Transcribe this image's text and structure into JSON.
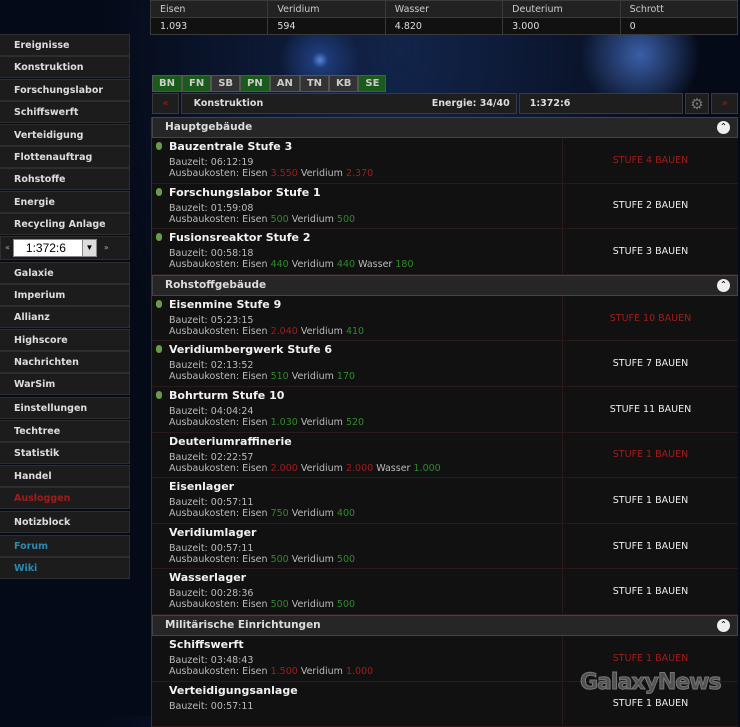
{
  "resources": {
    "headers": [
      "Eisen",
      "Veridium",
      "Wasser",
      "Deuterium",
      "Schrott"
    ],
    "values": [
      "1.093",
      "594",
      "4.820",
      "3.000",
      "0"
    ]
  },
  "sidebar": {
    "group1": [
      "Ereignisse",
      "Konstruktion",
      "Forschungslabor",
      "Schiffswerft",
      "Verteidigung",
      "Flottenauftrag",
      "Rohstoffe",
      "Energie",
      "Recycling Anlage"
    ],
    "planet_select": {
      "prev": "«",
      "value": "1:372:6",
      "next": "»"
    },
    "group2": [
      "Galaxie",
      "Imperium",
      "Allianz",
      "Highscore",
      "Nachrichten",
      "WarSim"
    ],
    "group3": [
      "Einstellungen",
      "Techtree",
      "Statistik",
      "Handel"
    ],
    "logout": "Ausloggen",
    "notes": "Notizblock",
    "forum": "Forum",
    "wiki": "Wiki",
    "colors": {
      "logout": "#a11c1c",
      "links": "#2a8ab0"
    }
  },
  "tabs": [
    {
      "label": "BN",
      "active": true
    },
    {
      "label": "FN",
      "active": true
    },
    {
      "label": "SB",
      "active": false
    },
    {
      "label": "PN",
      "active": true
    },
    {
      "label": "AN",
      "active": false
    },
    {
      "label": "TN",
      "active": false
    },
    {
      "label": "KB",
      "active": false
    },
    {
      "label": "SE",
      "active": true
    }
  ],
  "toolbar": {
    "prev": "«",
    "title": "Konstruktion",
    "energy": "Energie: 34/40",
    "coords": "1:372:6",
    "settings_icon": "gear-icon",
    "next": "»"
  },
  "labels": {
    "bauzeit": "Bauzeit:",
    "kosten": "Ausbaukosten:"
  },
  "sections": [
    {
      "title": "Hauptgebäude",
      "items": [
        {
          "name": "Bauzentrale Stufe 3",
          "time": "06:12:19",
          "costs": [
            {
              "r": "Eisen",
              "v": "3.550",
              "ok": false
            },
            {
              "r": "Veridium",
              "v": "2.370",
              "ok": false
            }
          ],
          "button": "STUFE 4 BAUEN",
          "available": false,
          "built": true
        },
        {
          "name": "Forschungslabor Stufe 1",
          "time": "01:59:08",
          "costs": [
            {
              "r": "Eisen",
              "v": "500",
              "ok": true
            },
            {
              "r": "Veridium",
              "v": "500",
              "ok": true
            }
          ],
          "button": "STUFE 2 BAUEN",
          "available": true,
          "built": true
        },
        {
          "name": "Fusionsreaktor Stufe 2",
          "time": "00:58:18",
          "costs": [
            {
              "r": "Eisen",
              "v": "440",
              "ok": true
            },
            {
              "r": "Veridium",
              "v": "440",
              "ok": true
            },
            {
              "r": "Wasser",
              "v": "180",
              "ok": true
            }
          ],
          "button": "STUFE 3 BAUEN",
          "available": true,
          "built": true
        }
      ]
    },
    {
      "title": "Rohstoffgebäude",
      "items": [
        {
          "name": "Eisenmine Stufe 9",
          "time": "05:23:15",
          "costs": [
            {
              "r": "Eisen",
              "v": "2.040",
              "ok": false
            },
            {
              "r": "Veridium",
              "v": "410",
              "ok": true
            }
          ],
          "button": "STUFE 10 BAUEN",
          "available": false,
          "built": true
        },
        {
          "name": "Veridiumbergwerk Stufe 6",
          "time": "02:13:52",
          "costs": [
            {
              "r": "Eisen",
              "v": "510",
              "ok": true
            },
            {
              "r": "Veridium",
              "v": "170",
              "ok": true
            }
          ],
          "button": "STUFE 7 BAUEN",
          "available": true,
          "built": true
        },
        {
          "name": "Bohrturm Stufe 10",
          "time": "04:04:24",
          "costs": [
            {
              "r": "Eisen",
              "v": "1.030",
              "ok": true
            },
            {
              "r": "Veridium",
              "v": "520",
              "ok": true
            }
          ],
          "button": "STUFE 11 BAUEN",
          "available": true,
          "built": true
        },
        {
          "name": "Deuteriumraffinerie",
          "time": "02:22:57",
          "costs": [
            {
              "r": "Eisen",
              "v": "2.000",
              "ok": false
            },
            {
              "r": "Veridium",
              "v": "2.000",
              "ok": false
            },
            {
              "r": "Wasser",
              "v": "1.000",
              "ok": true
            }
          ],
          "button": "STUFE 1 BAUEN",
          "available": false,
          "built": false
        },
        {
          "name": "Eisenlager",
          "time": "00:57:11",
          "costs": [
            {
              "r": "Eisen",
              "v": "750",
              "ok": true
            },
            {
              "r": "Veridium",
              "v": "400",
              "ok": true
            }
          ],
          "button": "STUFE 1 BAUEN",
          "available": true,
          "built": false
        },
        {
          "name": "Veridiumlager",
          "time": "00:57:11",
          "costs": [
            {
              "r": "Eisen",
              "v": "500",
              "ok": true
            },
            {
              "r": "Veridium",
              "v": "500",
              "ok": true
            }
          ],
          "button": "STUFE 1 BAUEN",
          "available": true,
          "built": false
        },
        {
          "name": "Wasserlager",
          "time": "00:28:36",
          "costs": [
            {
              "r": "Eisen",
              "v": "500",
              "ok": true
            },
            {
              "r": "Veridium",
              "v": "500",
              "ok": true
            }
          ],
          "button": "STUFE 1 BAUEN",
          "available": true,
          "built": false
        }
      ]
    },
    {
      "title": "Militärische Einrichtungen",
      "items": [
        {
          "name": "Schiffswerft",
          "time": "03:48:43",
          "costs": [
            {
              "r": "Eisen",
              "v": "1.500",
              "ok": false
            },
            {
              "r": "Veridium",
              "v": "1.000",
              "ok": false
            }
          ],
          "button": "STUFE 1 BAUEN",
          "available": false,
          "built": false
        },
        {
          "name": "Verteidigungsanlage",
          "time": "00:57:11",
          "costs": [],
          "button": "STUFE 1 BAUEN",
          "available": true,
          "built": false
        }
      ]
    }
  ],
  "watermark": "GalaxyNews",
  "colors": {
    "ok": "#2e8a2a",
    "insufficient": "#a11c1c",
    "tab_active": "#1a5a1a",
    "tab_inactive": "#333"
  }
}
